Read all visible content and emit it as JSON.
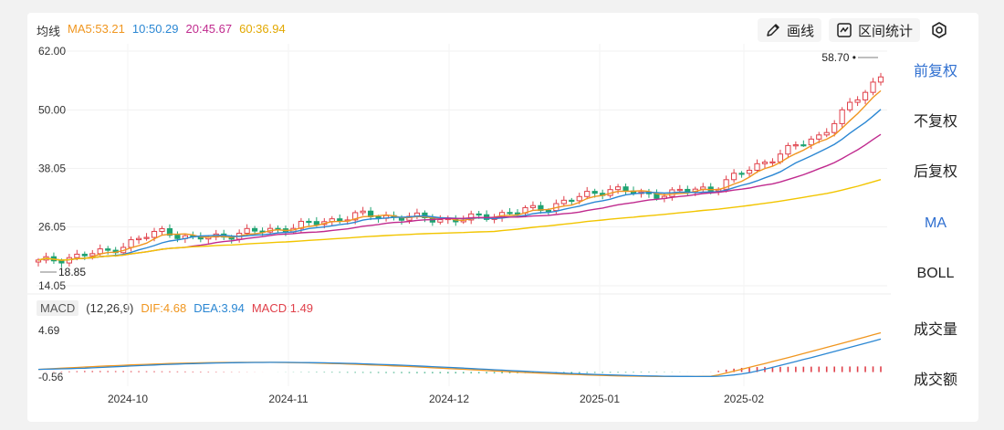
{
  "ma_legend": {
    "label": "均线",
    "ma5": "MA5:53.21",
    "ma10": "10:50.29",
    "ma20": "20:45.67",
    "ma60": "60:36.94"
  },
  "toolbar": {
    "draw_label": "画线",
    "range_stats_label": "区间统计"
  },
  "side_menu": {
    "adjust": [
      "前复权",
      "不复权",
      "后复权"
    ],
    "indicators": [
      "MA",
      "BOLL"
    ],
    "volume": [
      "成交量",
      "成交额"
    ]
  },
  "macd_legend": {
    "tag": "MACD",
    "params": "(12,26,9)",
    "dif": "DIF:4.68",
    "dea": "DEA:3.94",
    "macd": "MACD:1.49"
  },
  "colors": {
    "up": "#e0404a",
    "down": "#1fa372",
    "ma5": "#f0961f",
    "ma10": "#2b87d3",
    "ma20": "#c02a8e",
    "ma60": "#f2c500",
    "active": "#2f6fd0"
  },
  "chart_data": [
    {
      "type": "candlestick",
      "y_ticks": [
        "62.00",
        "50.00",
        "38.05",
        "26.05",
        "14.05"
      ],
      "ylim": [
        14.05,
        62.0
      ],
      "x_ticks": [
        "2024-10",
        "2024-11",
        "2024-12",
        "2025-01",
        "2025-02"
      ],
      "max_label": "58.70",
      "min_label": "18.85",
      "grid": true,
      "series": [
        {
          "name": "MA5",
          "value": 53.21
        },
        {
          "name": "10",
          "value": 50.29
        },
        {
          "name": "20",
          "value": 45.67
        },
        {
          "name": "60",
          "value": 36.94
        }
      ]
    },
    {
      "type": "bar",
      "y_ticks": [
        "4.69",
        "-0.56"
      ],
      "ylim": [
        -0.56,
        4.69
      ],
      "series": [
        {
          "name": "DIF",
          "value": 4.68
        },
        {
          "name": "DEA",
          "value": 3.94
        },
        {
          "name": "MACD",
          "value": 1.49
        }
      ]
    }
  ]
}
